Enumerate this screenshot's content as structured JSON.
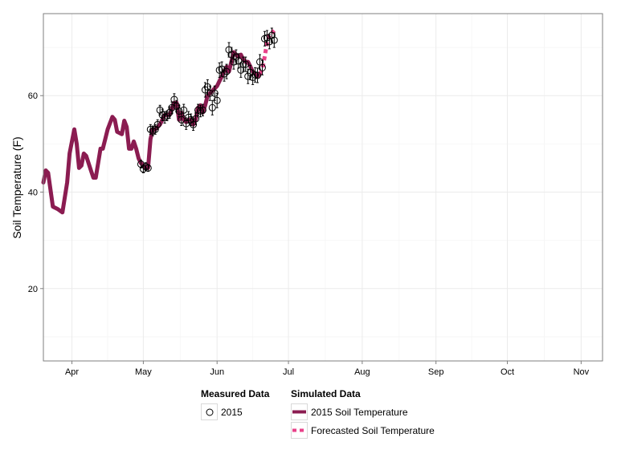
{
  "chart_data": {
    "type": "line",
    "title": "",
    "xlabel": "",
    "ylabel": "Soil Temperature (F)",
    "x_axis_type": "date",
    "xlim": [
      "2015-03-20",
      "2015-11-10"
    ],
    "ylim": [
      5,
      77
    ],
    "x_ticks": [
      {
        "date": "2015-04-01",
        "label": "Apr"
      },
      {
        "date": "2015-05-01",
        "label": "May"
      },
      {
        "date": "2015-06-01",
        "label": "Jun"
      },
      {
        "date": "2015-07-01",
        "label": "Jul"
      },
      {
        "date": "2015-08-01",
        "label": "Aug"
      },
      {
        "date": "2015-09-01",
        "label": "Sep"
      },
      {
        "date": "2015-10-01",
        "label": "Oct"
      },
      {
        "date": "2015-11-01",
        "label": "Nov"
      }
    ],
    "y_ticks": [
      20,
      40,
      60
    ],
    "grid": true,
    "legend_position": "bottom",
    "colors": {
      "simulated": "#8b1c51",
      "forecast": "#e8428a",
      "points": "#000000",
      "grid_major": "#ebebeb",
      "grid_minor": "#f5f5f5",
      "border": "#7f7f7f"
    },
    "legend": {
      "measured_title": "Measured Data",
      "measured_label": "2015",
      "simulated_title": "Simulated Data",
      "simulated_label": "2015 Soil Temperature",
      "forecast_label": "Forecasted Soil Temperature"
    },
    "series": [
      {
        "name": "2015 Soil Temperature",
        "kind": "line",
        "points": [
          [
            "2015-03-20",
            42
          ],
          [
            "2015-03-21",
            44.5
          ],
          [
            "2015-03-22",
            44
          ],
          [
            "2015-03-24",
            37
          ],
          [
            "2015-03-26",
            36.5
          ],
          [
            "2015-03-28",
            35.8
          ],
          [
            "2015-03-30",
            42
          ],
          [
            "2015-03-31",
            48
          ],
          [
            "2015-04-02",
            53
          ],
          [
            "2015-04-03",
            50
          ],
          [
            "2015-04-04",
            45
          ],
          [
            "2015-04-05",
            45.5
          ],
          [
            "2015-04-06",
            48
          ],
          [
            "2015-04-07",
            47.5
          ],
          [
            "2015-04-09",
            44.5
          ],
          [
            "2015-04-10",
            43
          ],
          [
            "2015-04-11",
            43
          ],
          [
            "2015-04-13",
            49
          ],
          [
            "2015-04-14",
            49
          ],
          [
            "2015-04-16",
            53
          ],
          [
            "2015-04-18",
            55.6
          ],
          [
            "2015-04-19",
            55
          ],
          [
            "2015-04-20",
            52.5
          ],
          [
            "2015-04-22",
            52
          ],
          [
            "2015-04-23",
            54.8
          ],
          [
            "2015-04-24",
            53.5
          ],
          [
            "2015-04-25",
            49
          ],
          [
            "2015-04-26",
            49
          ],
          [
            "2015-04-27",
            50.5
          ],
          [
            "2015-04-28",
            49
          ],
          [
            "2015-04-29",
            47
          ],
          [
            "2015-04-30",
            46
          ],
          [
            "2015-05-01",
            45.5
          ],
          [
            "2015-05-02",
            45
          ],
          [
            "2015-05-03",
            45
          ],
          [
            "2015-05-04",
            51
          ],
          [
            "2015-05-05",
            53
          ],
          [
            "2015-05-06",
            53
          ],
          [
            "2015-05-07",
            53.5
          ],
          [
            "2015-05-08",
            54
          ],
          [
            "2015-05-09",
            55
          ],
          [
            "2015-05-10",
            56
          ],
          [
            "2015-05-11",
            56
          ],
          [
            "2015-05-12",
            56
          ],
          [
            "2015-05-14",
            58.5
          ],
          [
            "2015-05-15",
            58.5
          ],
          [
            "2015-05-16",
            55
          ],
          [
            "2015-05-17",
            56.5
          ],
          [
            "2015-05-18",
            55
          ],
          [
            "2015-05-19",
            54.5
          ],
          [
            "2015-05-20",
            55
          ],
          [
            "2015-05-21",
            55
          ],
          [
            "2015-05-22",
            54
          ],
          [
            "2015-05-23",
            55
          ],
          [
            "2015-05-24",
            57.5
          ],
          [
            "2015-05-25",
            58
          ],
          [
            "2015-05-26",
            56.5
          ],
          [
            "2015-05-27",
            58
          ],
          [
            "2015-05-28",
            60
          ],
          [
            "2015-05-30",
            61
          ],
          [
            "2015-05-31",
            61.5
          ],
          [
            "2015-06-01",
            62
          ],
          [
            "2015-06-03",
            64
          ],
          [
            "2015-06-04",
            65
          ],
          [
            "2015-06-05",
            66
          ],
          [
            "2015-06-06",
            65
          ],
          [
            "2015-06-07",
            67
          ],
          [
            "2015-06-08",
            69
          ],
          [
            "2015-06-09",
            68.5
          ],
          [
            "2015-06-10",
            68
          ],
          [
            "2015-06-11",
            68.5
          ],
          [
            "2015-06-12",
            67.5
          ],
          [
            "2015-06-13",
            67
          ],
          [
            "2015-06-14",
            67
          ],
          [
            "2015-06-15",
            66
          ],
          [
            "2015-06-16",
            65
          ],
          [
            "2015-06-17",
            64.5
          ],
          [
            "2015-06-18",
            64
          ],
          [
            "2015-06-19",
            64.5
          ]
        ]
      },
      {
        "name": "Forecasted Soil Temperature",
        "kind": "dashed-line",
        "points": [
          [
            "2015-06-19",
            64.5
          ],
          [
            "2015-06-20",
            65.5
          ],
          [
            "2015-06-21",
            68
          ],
          [
            "2015-06-22",
            71
          ],
          [
            "2015-06-23",
            72.5
          ],
          [
            "2015-06-24",
            73
          ],
          [
            "2015-06-25",
            73.5
          ]
        ]
      },
      {
        "name": "2015",
        "kind": "points-with-error-bars",
        "points": [
          [
            "2015-04-30",
            45.8,
            0.8
          ],
          [
            "2015-05-01",
            44.8,
            0.8
          ],
          [
            "2015-05-02",
            45.3,
            0.8
          ],
          [
            "2015-05-03",
            45.0,
            0.7
          ],
          [
            "2015-05-04",
            53.0,
            1.0
          ],
          [
            "2015-05-05",
            52.7,
            1.0
          ],
          [
            "2015-05-06",
            53.0,
            1.0
          ],
          [
            "2015-05-07",
            54.0,
            1.0
          ],
          [
            "2015-05-08",
            57.0,
            1.0
          ],
          [
            "2015-05-09",
            56.0,
            1.2
          ],
          [
            "2015-05-10",
            55.5,
            1.2
          ],
          [
            "2015-05-11",
            55.8,
            1.0
          ],
          [
            "2015-05-12",
            56.5,
            1.2
          ],
          [
            "2015-05-13",
            57.5,
            1.2
          ],
          [
            "2015-05-14",
            59.2,
            1.2
          ],
          [
            "2015-05-15",
            57.8,
            1.2
          ],
          [
            "2015-05-16",
            56.8,
            1.2
          ],
          [
            "2015-05-17",
            55.0,
            1.2
          ],
          [
            "2015-05-18",
            57.0,
            1.2
          ],
          [
            "2015-05-19",
            54.2,
            1.2
          ],
          [
            "2015-05-20",
            55.5,
            1.2
          ],
          [
            "2015-05-21",
            55.0,
            1.2
          ],
          [
            "2015-05-22",
            54.0,
            1.2
          ],
          [
            "2015-05-23",
            55.2,
            1.2
          ],
          [
            "2015-05-24",
            57.0,
            1.2
          ],
          [
            "2015-05-25",
            56.8,
            1.2
          ],
          [
            "2015-05-26",
            57.0,
            1.2
          ],
          [
            "2015-05-27",
            61.2,
            1.5
          ],
          [
            "2015-05-28",
            61.8,
            1.5
          ],
          [
            "2015-05-29",
            60.5,
            1.5
          ],
          [
            "2015-05-30",
            57.5,
            1.5
          ],
          [
            "2015-05-31",
            60.5,
            1.5
          ],
          [
            "2015-06-01",
            59.0,
            1.5
          ],
          [
            "2015-06-02",
            65.3,
            1.5
          ],
          [
            "2015-06-03",
            65.5,
            1.5
          ],
          [
            "2015-06-04",
            64.5,
            1.5
          ],
          [
            "2015-06-05",
            65.0,
            1.5
          ],
          [
            "2015-06-06",
            69.5,
            1.5
          ],
          [
            "2015-06-07",
            68.5,
            1.5
          ],
          [
            "2015-06-08",
            67.0,
            1.5
          ],
          [
            "2015-06-09",
            68.0,
            1.5
          ],
          [
            "2015-06-10",
            67.2,
            1.5
          ],
          [
            "2015-06-11",
            65.3,
            1.5
          ],
          [
            "2015-06-12",
            66.5,
            1.5
          ],
          [
            "2015-06-13",
            66.5,
            1.5
          ],
          [
            "2015-06-14",
            64.0,
            1.5
          ],
          [
            "2015-06-15",
            64.8,
            1.5
          ],
          [
            "2015-06-16",
            63.8,
            1.5
          ],
          [
            "2015-06-17",
            64.3,
            1.5
          ],
          [
            "2015-06-18",
            64.2,
            1.5
          ],
          [
            "2015-06-19",
            67.0,
            1.5
          ],
          [
            "2015-06-20",
            65.8,
            1.5
          ],
          [
            "2015-06-21",
            71.8,
            1.5
          ],
          [
            "2015-06-22",
            72.0,
            1.5
          ],
          [
            "2015-06-23",
            71.2,
            1.5
          ],
          [
            "2015-06-24",
            72.5,
            1.5
          ],
          [
            "2015-06-25",
            71.5,
            1.5
          ]
        ]
      }
    ]
  }
}
